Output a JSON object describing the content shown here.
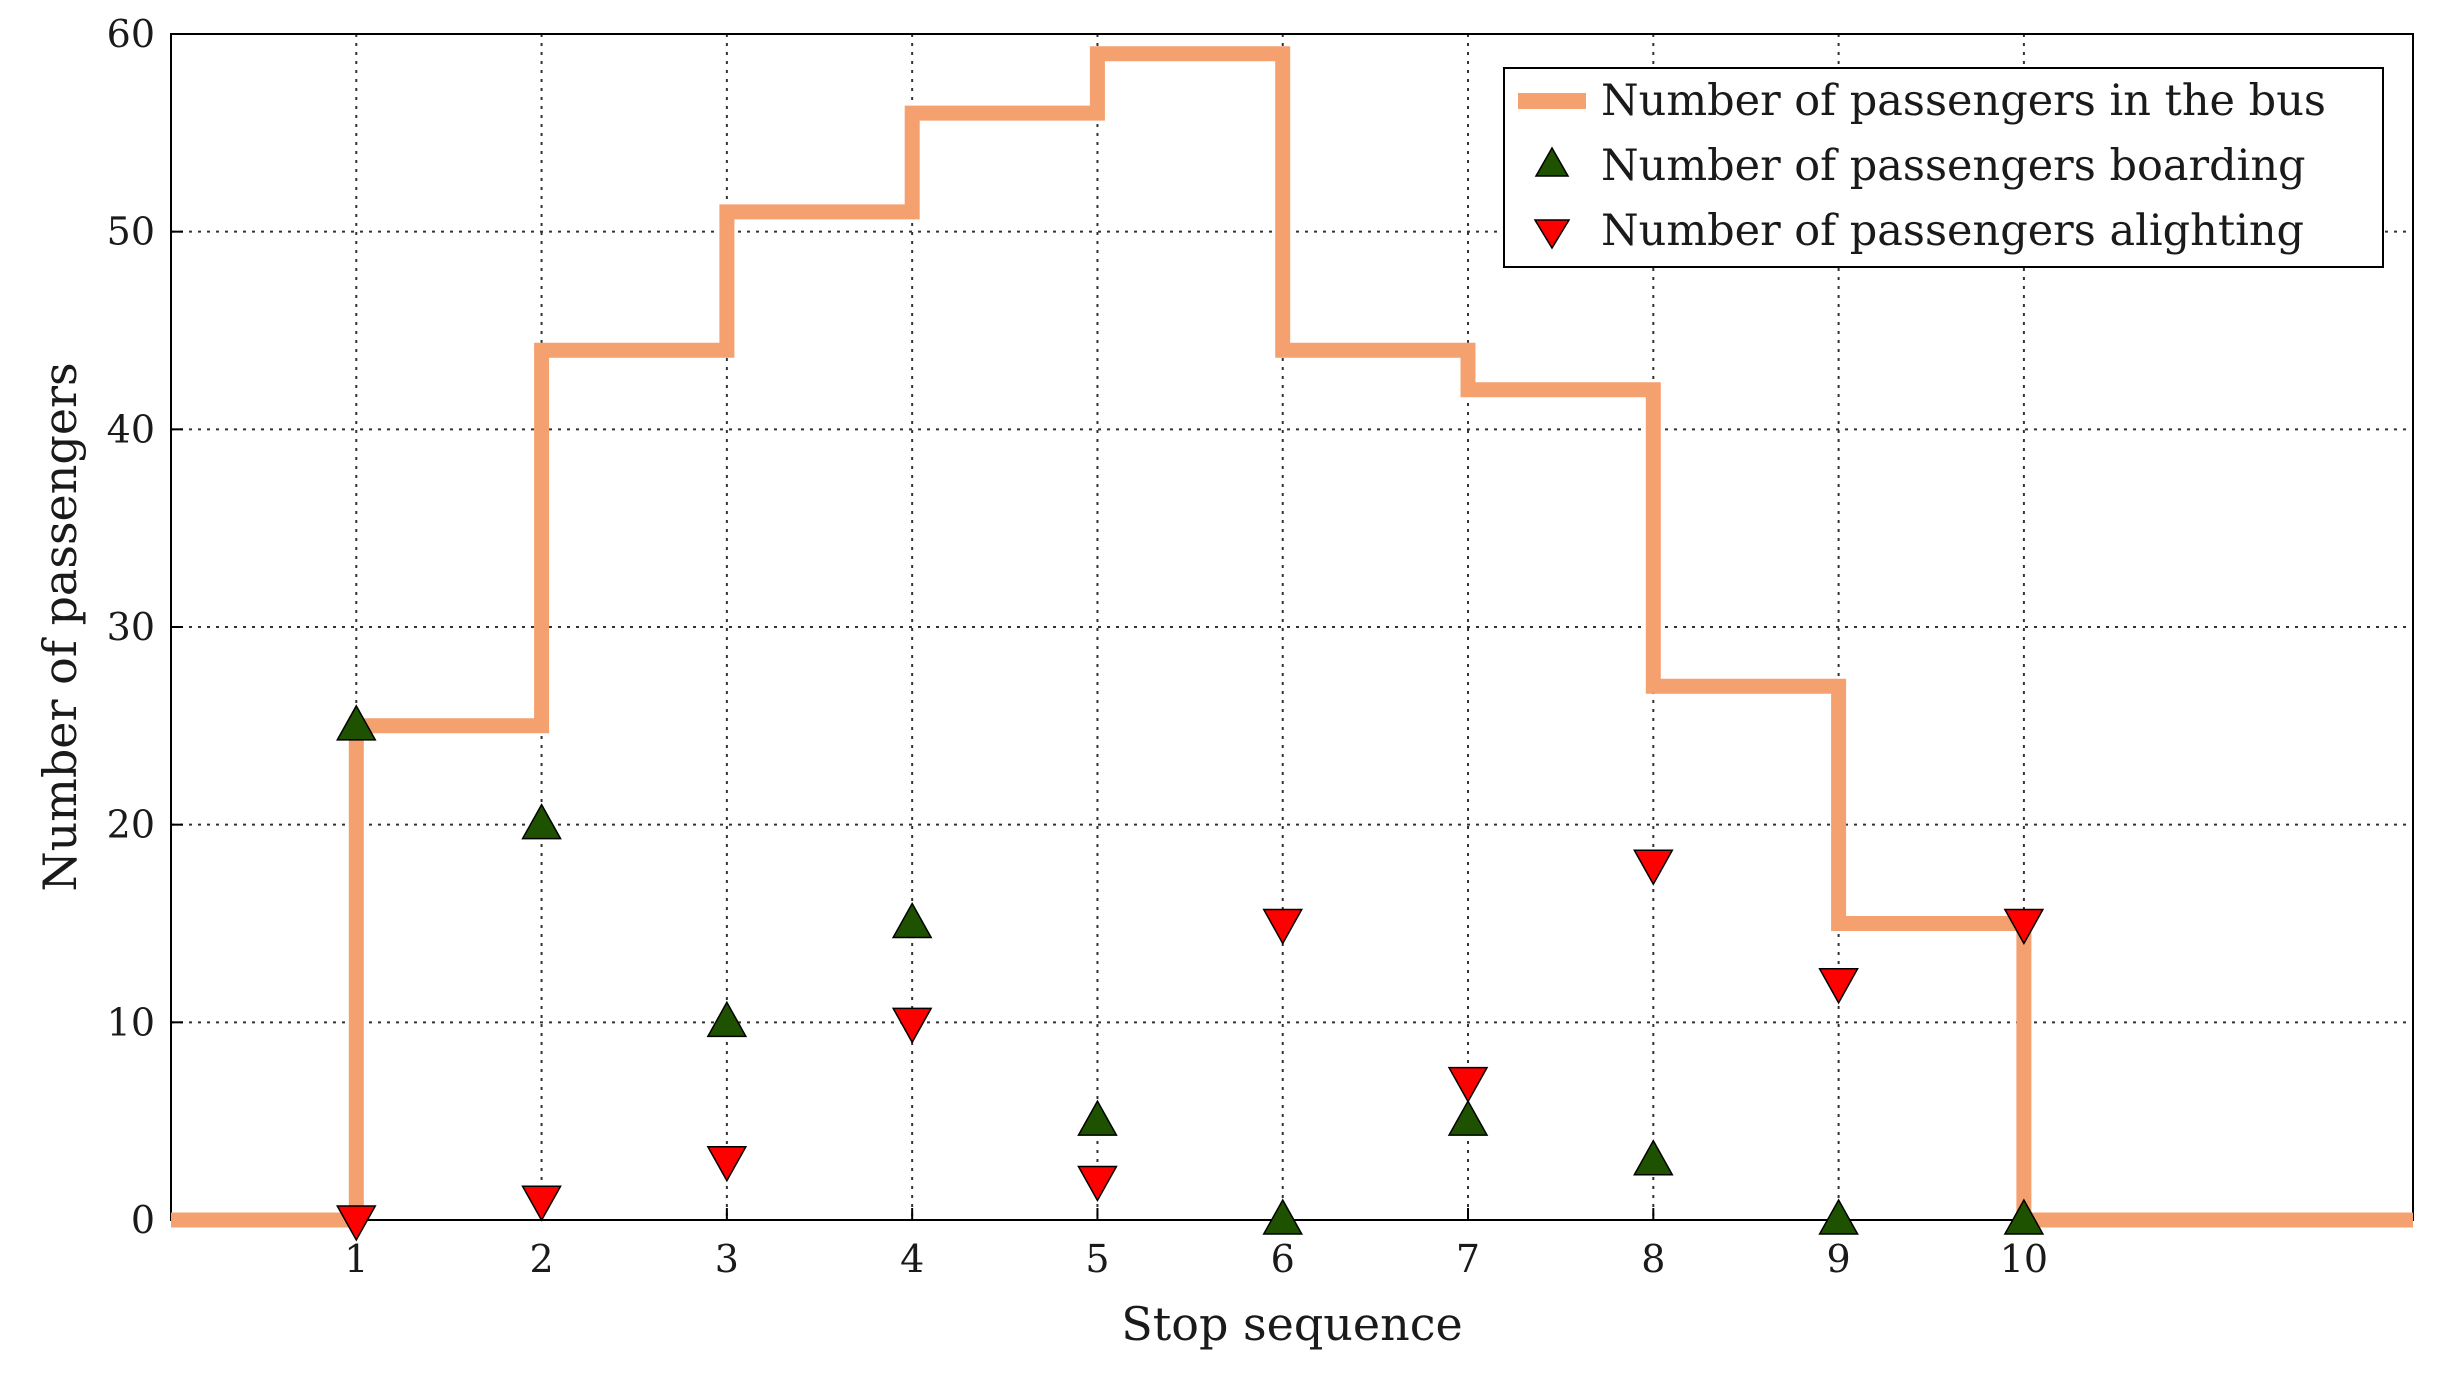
{
  "chart_data": {
    "type": "line",
    "xlabel": "Stop sequence",
    "ylabel": "Number of passengers",
    "xlim": [
      0,
      12.1
    ],
    "ylim": [
      0,
      60
    ],
    "xticks": [
      1,
      2,
      3,
      4,
      5,
      6,
      7,
      8,
      9,
      10
    ],
    "yticks": [
      0,
      10,
      20,
      30,
      40,
      50,
      60
    ],
    "grid": true,
    "legend_position": "top-right",
    "series": [
      {
        "name": "Number of passengers in the bus",
        "style": "step",
        "color": "#F4A06F",
        "x": [
          0,
          1,
          1,
          2,
          2,
          3,
          3,
          4,
          4,
          5,
          5,
          6,
          6,
          7,
          7,
          8,
          8,
          9,
          9,
          10,
          10,
          12.1
        ],
        "y": [
          0,
          0,
          25,
          25,
          44,
          44,
          51,
          51,
          56,
          56,
          59,
          59,
          44,
          44,
          42,
          42,
          27,
          27,
          15,
          15,
          0,
          0
        ]
      },
      {
        "name": "Number of passengers boarding",
        "style": "marker-triangle-up",
        "color": "#1F5200",
        "x": [
          1,
          2,
          3,
          4,
          5,
          6,
          7,
          8,
          9,
          10
        ],
        "y": [
          25,
          20,
          10,
          15,
          5,
          0,
          5,
          3,
          0,
          0
        ]
      },
      {
        "name": "Number of passengers alighting",
        "style": "marker-triangle-down",
        "color": "#FF0000",
        "x": [
          1,
          2,
          3,
          4,
          5,
          6,
          7,
          8,
          9,
          10
        ],
        "y": [
          0,
          1,
          3,
          10,
          2,
          15,
          7,
          18,
          12,
          15
        ]
      }
    ]
  }
}
